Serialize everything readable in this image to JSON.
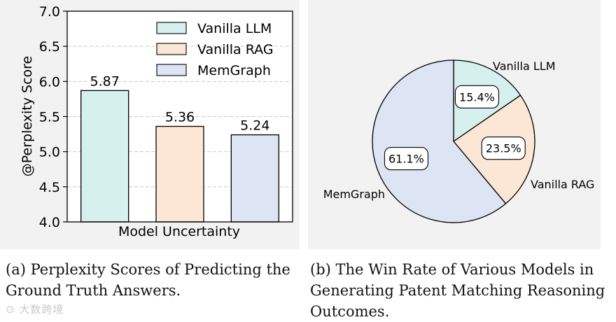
{
  "chart_data": [
    {
      "type": "bar",
      "ylabel": "@Perplexity Score",
      "xlabel": "Model Uncertainty",
      "ylim": [
        4.0,
        7.0
      ],
      "yticks": [
        "4.0",
        "4.5",
        "5.0",
        "5.5",
        "6.0",
        "6.5",
        "7.0"
      ],
      "grid": true,
      "legend_position": "top-right",
      "categories": [
        "Vanilla LLM",
        "Vanilla RAG",
        "MemGraph"
      ],
      "values": [
        5.87,
        5.36,
        5.24
      ],
      "value_labels": [
        "5.87",
        "5.36",
        "5.24"
      ],
      "colors": [
        "#d6f0ee",
        "#fce6d6",
        "#dde4f3"
      ]
    },
    {
      "type": "pie",
      "labels": [
        "Vanilla LLM",
        "Vanilla RAG",
        "MemGraph"
      ],
      "values": [
        15.4,
        23.5,
        61.1
      ],
      "value_labels": [
        "15.4%",
        "23.5%",
        "61.1%"
      ],
      "colors": [
        "#d6f0ee",
        "#fce6d6",
        "#dde4f3"
      ]
    }
  ],
  "captions": {
    "a": "(a)  Perplexity Scores of Predicting the Ground Truth Answers.",
    "b": "(b)  The Win Rate of Various Models in Generating Patent Matching Reasoning Outcomes."
  },
  "watermark": "大数跨境"
}
